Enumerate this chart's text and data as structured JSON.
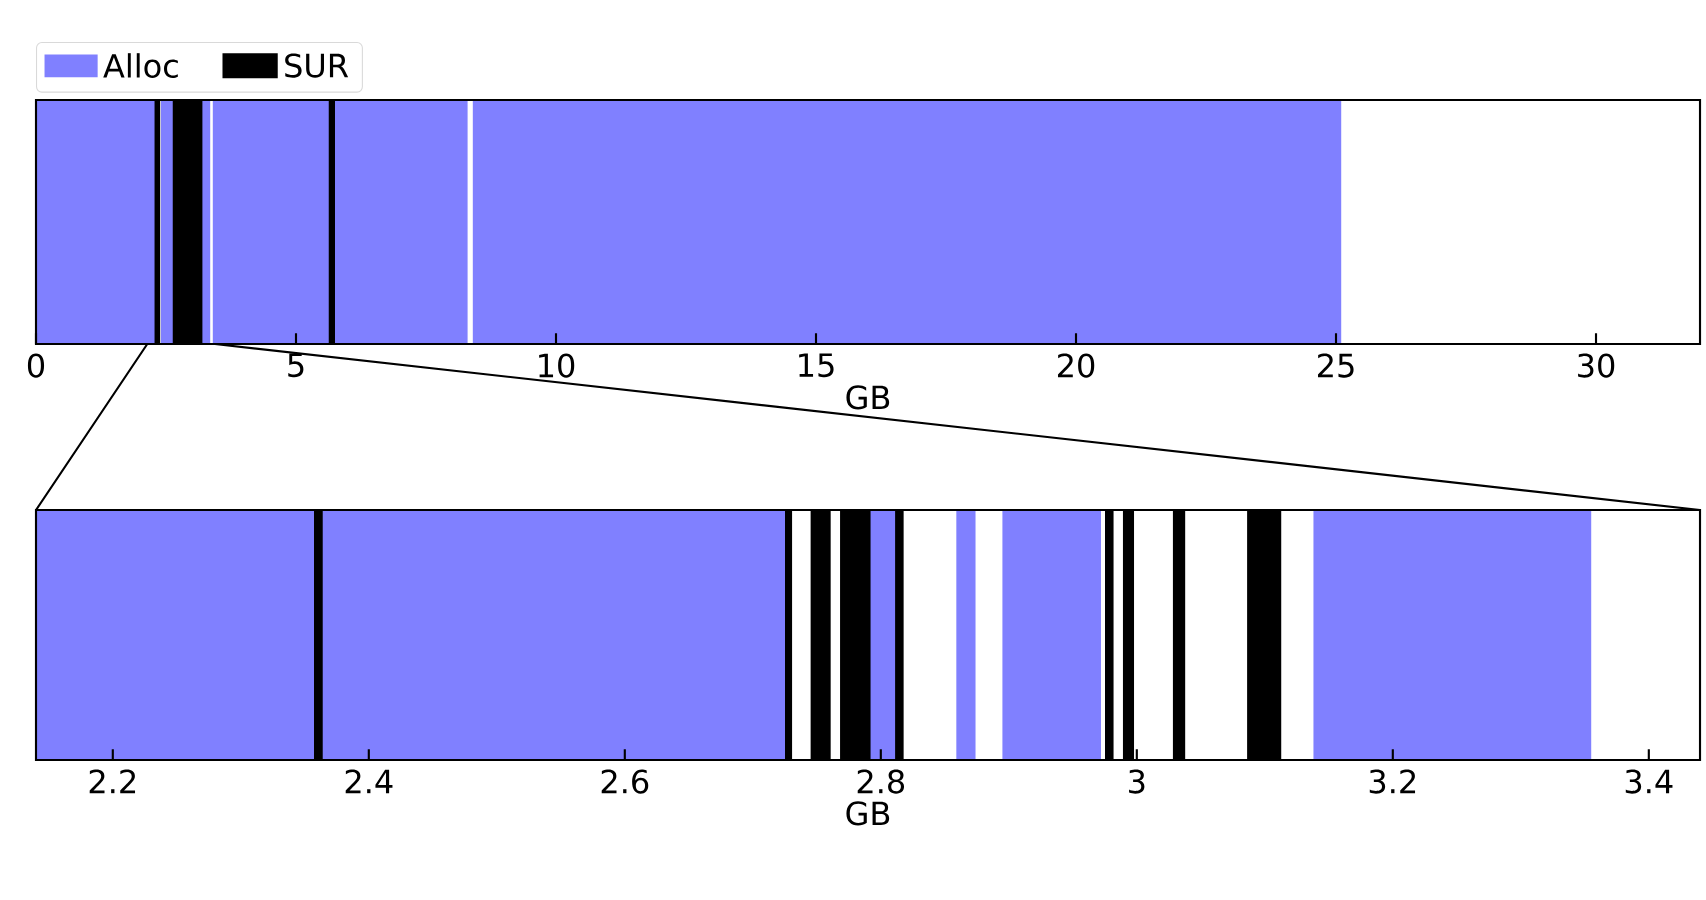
{
  "chart_data": [
    {
      "type": "bar",
      "orientation": "horizontal",
      "categories": [
        null
      ],
      "xlabel": "GB",
      "xlim": [
        0,
        32
      ],
      "xticks": [
        0,
        5,
        10,
        15,
        20,
        25,
        30
      ],
      "legend": "top left",
      "series": [
        {
          "name": "Alloc",
          "color": "#8080ff",
          "base": [
            0
          ],
          "values": [
            2.3
          ]
        },
        {
          "name": "SUR",
          "color": "#000000",
          "base": [
            2.3
          ],
          "values": [
            0.07
          ]
        },
        {
          "color": "#8080ff",
          "base": [
            2.4
          ],
          "values": [
            0.25
          ]
        },
        {
          "color": "#000000",
          "base": [
            2.65
          ],
          "values": [
            0.55
          ]
        },
        {
          "color": "#8080ff",
          "base": [
            3.2
          ],
          "values": [
            0.15
          ]
        },
        {
          "color": "#8080ff",
          "base": [
            3.4
          ],
          "values": [
            2.25
          ]
        },
        {
          "color": "#000000",
          "base": [
            5.65
          ],
          "values": [
            0.1
          ]
        },
        {
          "color": "#8080ff",
          "base": [
            5.75
          ],
          "values": [
            2.55
          ]
        },
        {
          "color": "#8080ff",
          "base": [
            8.4
          ],
          "values": [
            16.7
          ]
        }
      ]
    },
    {
      "type": "bar",
      "orientation": "horizontal",
      "categories": [
        null
      ],
      "xlabel": "GB",
      "xlim": [
        2.14,
        3.44
      ],
      "xticks": [
        2.2,
        2.4,
        2.6,
        2.8,
        3,
        3.2,
        3.4
      ],
      "series": [
        {
          "color": "#8080ff",
          "base": [
            2.14
          ],
          "values": [
            0.218
          ]
        },
        {
          "color": "#000000",
          "base": [
            2.358
          ],
          "values": [
            0.006
          ]
        },
        {
          "color": "#8080ff",
          "base": [
            2.364
          ],
          "values": [
            0.362
          ]
        },
        {
          "color": "#000000",
          "base": [
            2.726
          ],
          "values": [
            0.004
          ]
        },
        {
          "color": "#000000",
          "base": [
            2.746
          ],
          "values": [
            0.014
          ]
        },
        {
          "color": "#000000",
          "base": [
            2.769
          ],
          "values": [
            0.023
          ]
        },
        {
          "color": "#8080ff",
          "base": [
            2.792
          ],
          "values": [
            0.02
          ]
        },
        {
          "color": "#000000",
          "base": [
            2.812
          ],
          "values": [
            0.005
          ]
        },
        {
          "color": "#8080ff",
          "base": [
            2.859
          ],
          "values": [
            0.015
          ]
        },
        {
          "color": "#8080ff",
          "base": [
            2.895
          ],
          "values": [
            0.077
          ]
        },
        {
          "color": "#000000",
          "base": [
            2.976
          ],
          "values": [
            0.005
          ]
        },
        {
          "color": "#000000",
          "base": [
            2.99
          ],
          "values": [
            0.007
          ]
        },
        {
          "color": "#000000",
          "base": [
            3.029
          ],
          "values": [
            0.008
          ]
        },
        {
          "color": "#000000",
          "base": [
            3.087
          ],
          "values": [
            0.025
          ]
        },
        {
          "color": "#8080ff",
          "base": [
            3.138
          ],
          "values": [
            0.217
          ]
        }
      ]
    }
  ]
}
